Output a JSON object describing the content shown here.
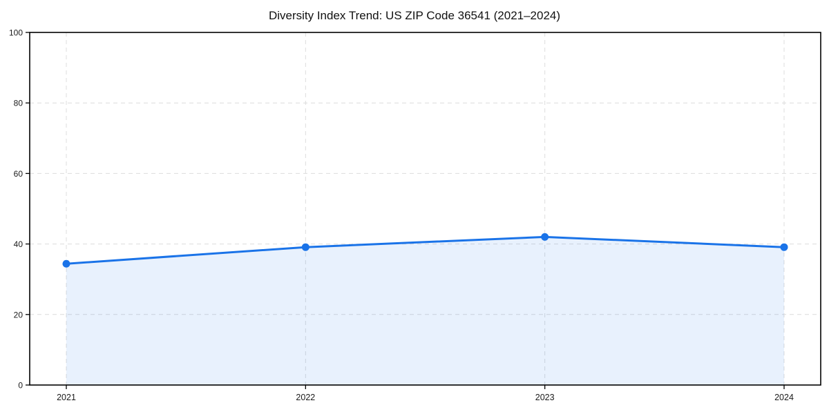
{
  "chart_data": {
    "type": "line",
    "title": "Diversity Index Trend: US ZIP Code 36541 (2021–2024)",
    "categories": [
      "2021",
      "2022",
      "2023",
      "2024"
    ],
    "series": [
      {
        "name": "Diversity Index",
        "values": [
          34.4,
          39.1,
          42.0,
          39.1
        ]
      }
    ],
    "xlabel": "",
    "ylabel": "",
    "ylim": [
      0,
      100
    ],
    "yticks": [
      0,
      20,
      40,
      60,
      80,
      100
    ],
    "grid": true,
    "grid_style": "dashed",
    "legend_position": "none",
    "area_fill": true,
    "marker": "circle",
    "colors": {
      "line": "#1a73e8",
      "marker": "#1a73e8",
      "fill": "#1a73e8",
      "fill_opacity": 0.1,
      "grid": "#dcdcdc",
      "axis": "#000000",
      "tick_label": "#1a1a1a",
      "title": "#111111",
      "background": "#ffffff"
    }
  }
}
